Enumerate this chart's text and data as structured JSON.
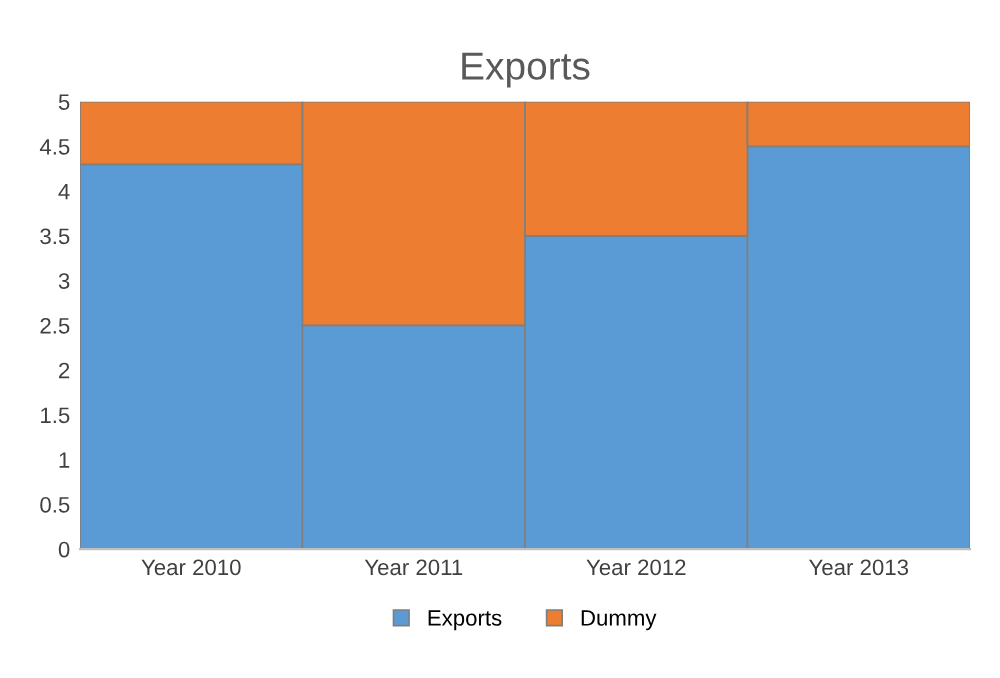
{
  "chart_data": {
    "type": "bar",
    "stacked": true,
    "title": "Exports",
    "categories": [
      "Year 2010",
      "Year 2011",
      "Year 2012",
      "Year 2013"
    ],
    "series": [
      {
        "name": "Exports",
        "color": "#5b9bd5",
        "values": [
          4.3,
          2.5,
          3.5,
          4.5
        ]
      },
      {
        "name": "Dummy",
        "color": "#ed7d31",
        "values": [
          0.7,
          2.5,
          1.5,
          0.5
        ]
      }
    ],
    "ylim": [
      0,
      5
    ],
    "yticks": [
      0,
      0.5,
      1,
      1.5,
      2,
      2.5,
      3,
      3.5,
      4,
      4.5,
      5
    ],
    "legend": "bottom"
  }
}
